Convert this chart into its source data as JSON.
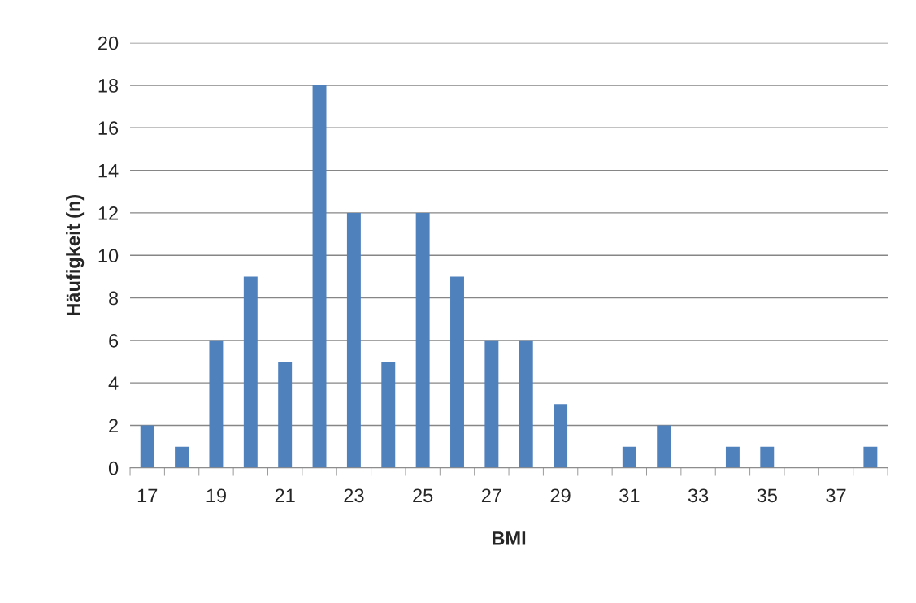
{
  "chart_data": {
    "type": "bar",
    "xlabel": "BMI",
    "ylabel": "Häufigkeit (n)",
    "categories": [
      "17",
      null,
      "19",
      null,
      "21",
      null,
      "23",
      null,
      "25",
      null,
      "27",
      null,
      "29",
      null,
      "31",
      null,
      "33",
      null,
      "35",
      null,
      "37",
      null
    ],
    "values": [
      2,
      1,
      6,
      9,
      5,
      18,
      12,
      5,
      12,
      9,
      6,
      6,
      3,
      0,
      1,
      2,
      0,
      1,
      1,
      0,
      0,
      1
    ],
    "color": "#4f81bd",
    "ylim": [
      0,
      20
    ],
    "yticks": [
      0,
      2,
      4,
      6,
      8,
      10,
      12,
      14,
      16,
      18,
      20
    ],
    "grid": "y",
    "legend": false
  }
}
